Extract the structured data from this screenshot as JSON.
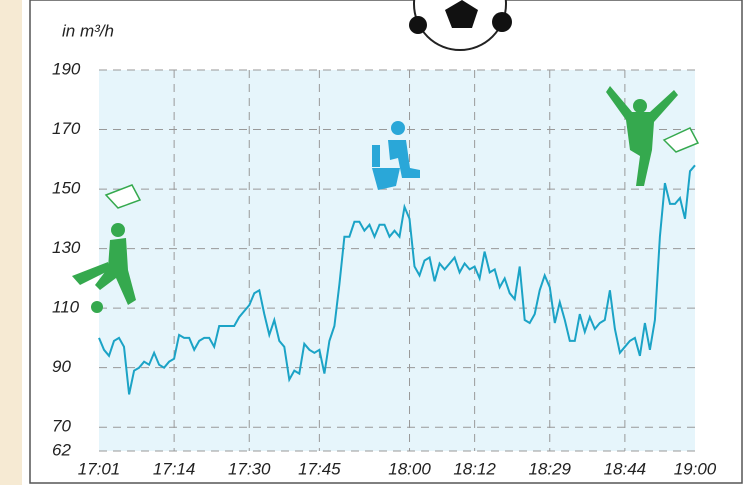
{
  "chart_data": {
    "type": "line",
    "y_label": "in m³/h",
    "categories": [
      "17:01",
      null,
      null,
      null,
      null,
      null,
      null,
      null,
      null,
      null,
      null,
      null,
      null,
      null,
      null,
      "17:14",
      null,
      null,
      null,
      null,
      null,
      null,
      null,
      null,
      null,
      null,
      null,
      null,
      null,
      null,
      "17:30",
      null,
      null,
      null,
      null,
      null,
      null,
      null,
      null,
      null,
      null,
      null,
      null,
      null,
      "17:45",
      null,
      null,
      null,
      null,
      null,
      null,
      null,
      null,
      null,
      null,
      null,
      null,
      null,
      null,
      null,
      null,
      null,
      "18:00",
      null,
      null,
      null,
      null,
      null,
      null,
      null,
      null,
      null,
      null,
      null,
      null,
      "18:12",
      null,
      null,
      null,
      null,
      null,
      null,
      null,
      null,
      null,
      null,
      null,
      null,
      null,
      null,
      "18:29",
      null,
      null,
      null,
      null,
      null,
      null,
      null,
      null,
      null,
      null,
      null,
      null,
      null,
      null,
      "18:44",
      null,
      null,
      null,
      null,
      null,
      null,
      null,
      null,
      null,
      null,
      null,
      null,
      null,
      "19:00"
    ],
    "values": [
      100,
      96,
      94,
      99,
      100,
      97,
      81,
      89,
      90,
      92,
      91,
      95,
      91,
      90,
      92,
      93,
      101,
      100,
      100,
      96,
      99,
      100,
      100,
      97,
      104,
      104,
      104,
      104,
      107,
      109,
      111,
      115,
      116,
      108,
      101,
      106,
      99,
      97,
      86,
      89,
      88,
      98,
      96,
      95,
      96,
      88,
      99,
      104,
      118,
      134,
      134,
      139,
      139,
      136,
      138,
      134,
      138,
      138,
      134,
      136,
      134,
      144,
      140,
      124,
      121,
      126,
      127,
      119,
      125,
      123,
      125,
      127,
      122,
      125,
      123,
      124,
      120,
      129,
      122,
      123,
      117,
      120,
      115,
      113,
      124,
      106,
      105,
      108,
      116,
      121,
      117,
      105,
      112,
      106,
      99,
      99,
      108,
      102,
      107,
      103,
      105,
      106,
      116,
      103,
      95,
      97,
      99,
      100,
      94,
      105,
      96,
      106,
      134,
      152,
      145,
      145,
      147,
      140,
      156,
      158
    ],
    "color": "#1ba3c6",
    "ylim": [
      62,
      190
    ],
    "yticks": [
      62,
      70,
      90,
      110,
      130,
      150,
      170,
      190
    ],
    "grid": true
  }
}
